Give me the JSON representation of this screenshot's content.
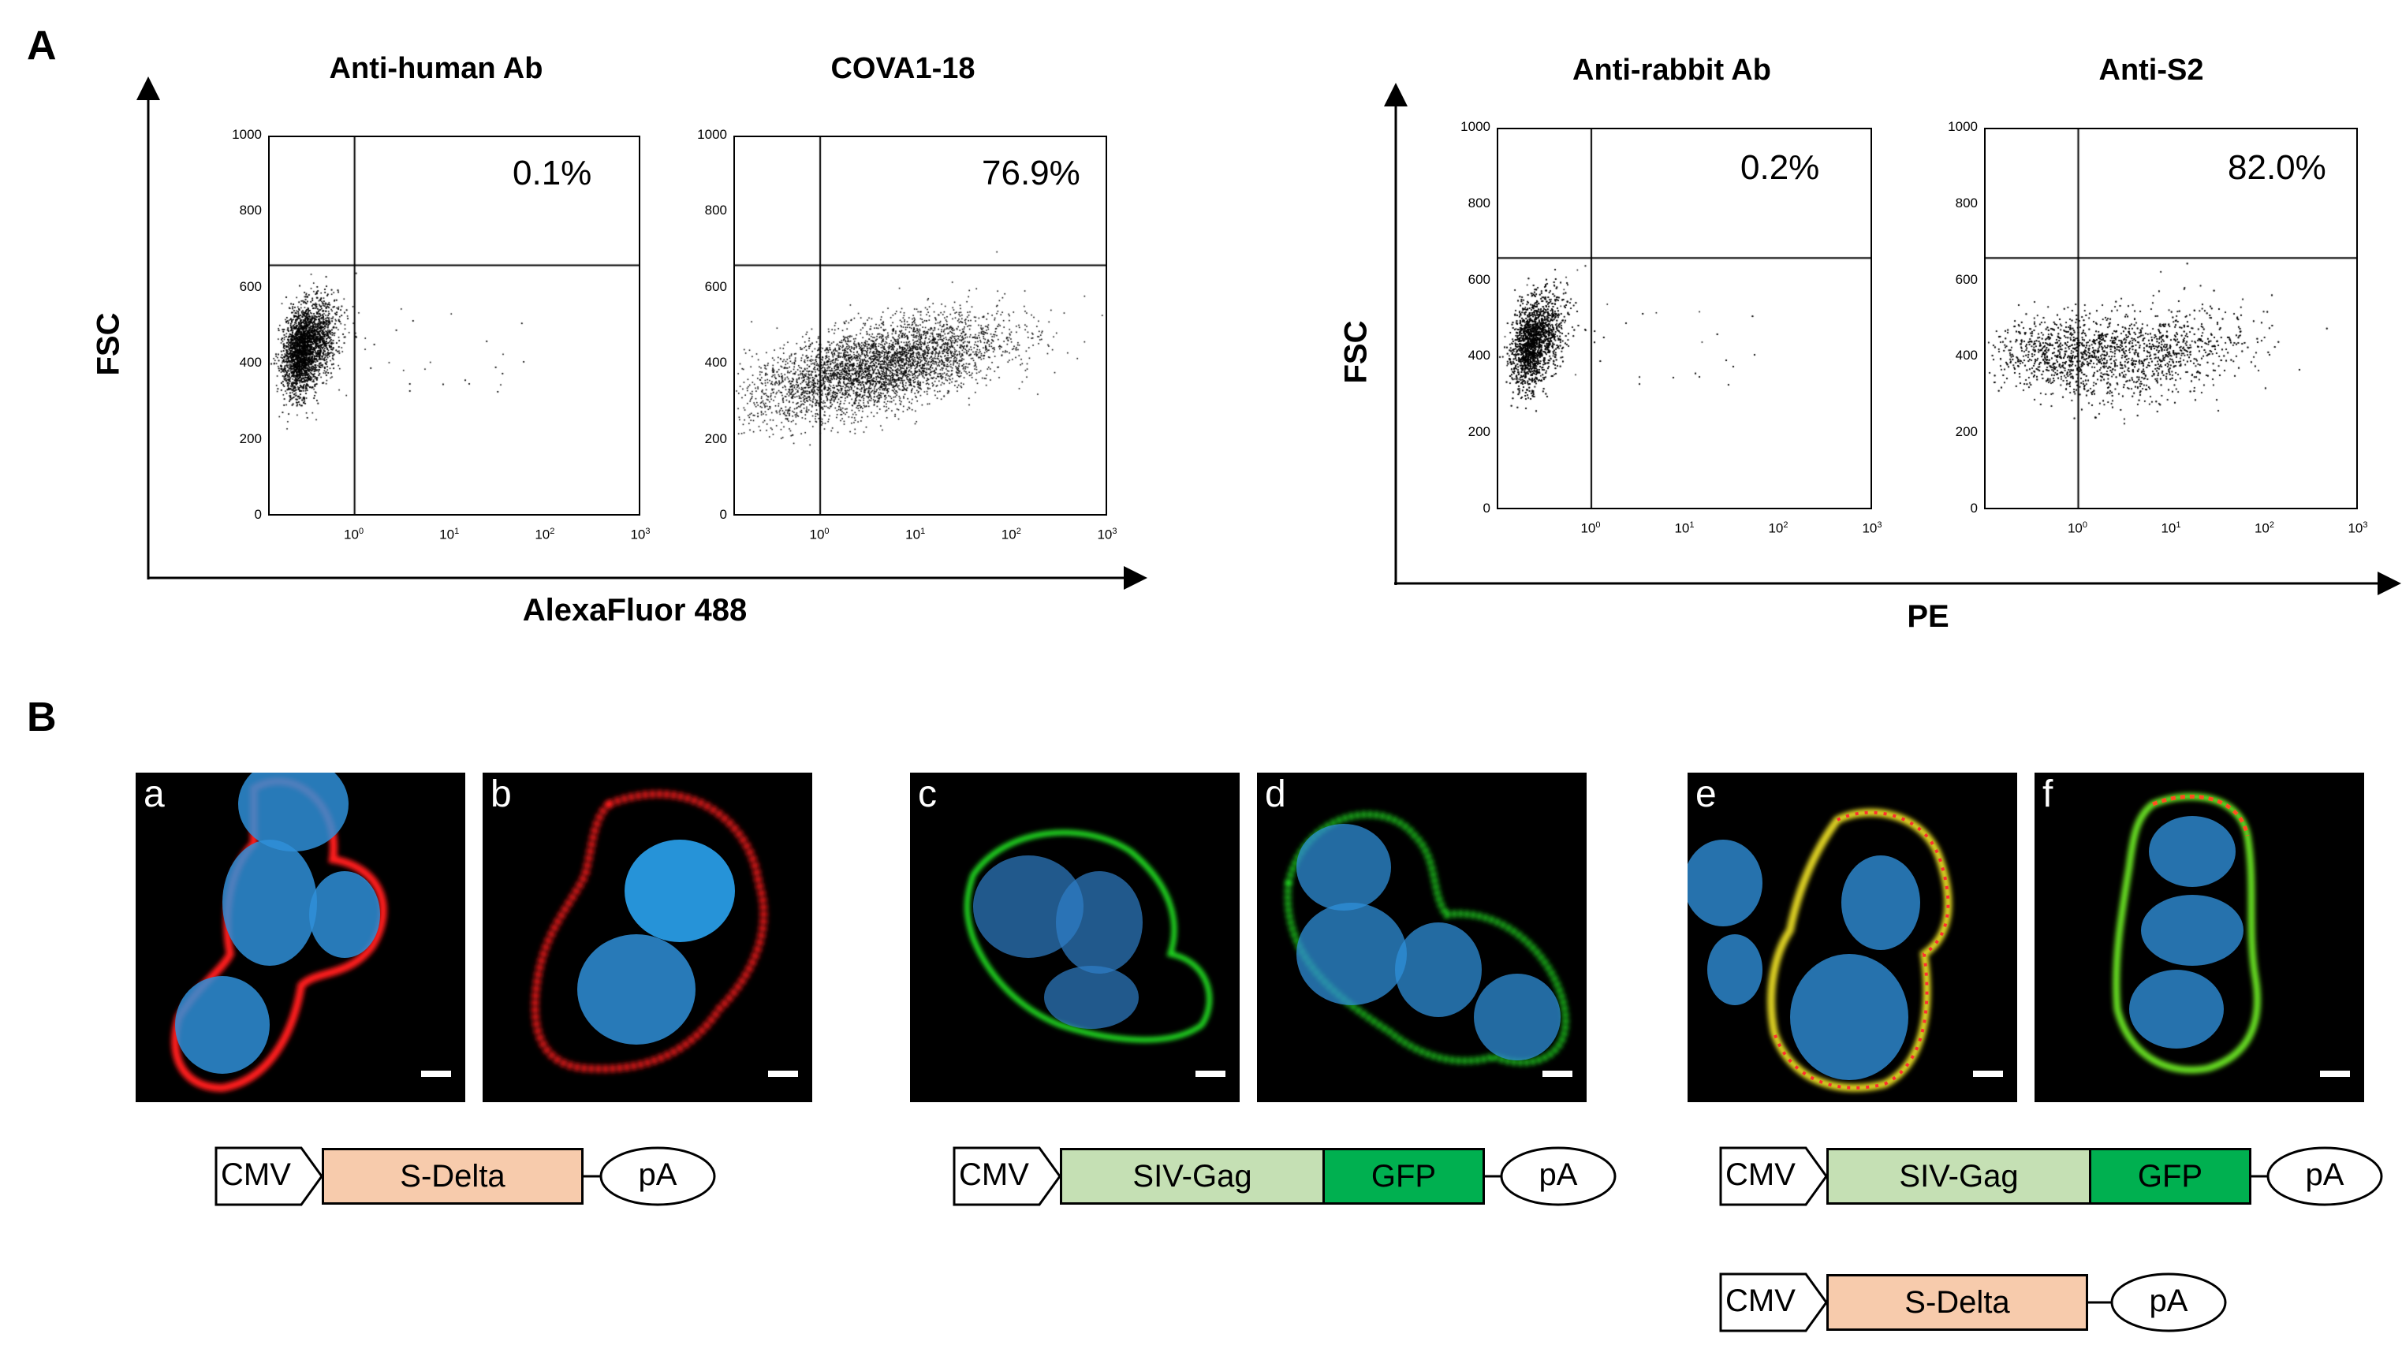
{
  "figure": {
    "panel_a_label": "A",
    "panel_b_label": "B",
    "panel_a": {
      "left_group": {
        "ylabel": "FSC",
        "xlabel": "AlexaFluor 488",
        "plots": [
          {
            "title": "Anti-human Ab",
            "percent": "0.1%"
          },
          {
            "title": "COVA1-18",
            "percent": "76.9%"
          }
        ]
      },
      "right_group": {
        "ylabel": "FSC",
        "xlabel": "PE",
        "plots": [
          {
            "title": "Anti-rabbit Ab",
            "percent": "0.2%"
          },
          {
            "title": "Anti-S2",
            "percent": "82.0%"
          }
        ]
      },
      "y_ticks": [
        "0",
        "200",
        "400",
        "600",
        "800",
        "1000"
      ],
      "x_ticks": [
        "10",
        "10",
        "10",
        "10"
      ],
      "x_tick_exponents": [
        "0",
        "1",
        "2",
        "3"
      ]
    },
    "panel_b": {
      "images": [
        {
          "label": "a"
        },
        {
          "label": "b"
        },
        {
          "label": "c"
        },
        {
          "label": "d"
        },
        {
          "label": "e"
        },
        {
          "label": "f"
        }
      ],
      "constructs": {
        "cmv": "CMV",
        "s_delta": "S-Delta",
        "siv_gag": "SIV-Gag",
        "gfp": "GFP",
        "pa": "pA"
      },
      "colors": {
        "s_delta": "#f7cbac",
        "siv_gag": "#c5e0b4",
        "gfp": "#00b050",
        "red_stain": "#ff1a1a",
        "green_stain": "#22dd22",
        "nucleus_blue": "#2f8fd8"
      }
    }
  }
}
